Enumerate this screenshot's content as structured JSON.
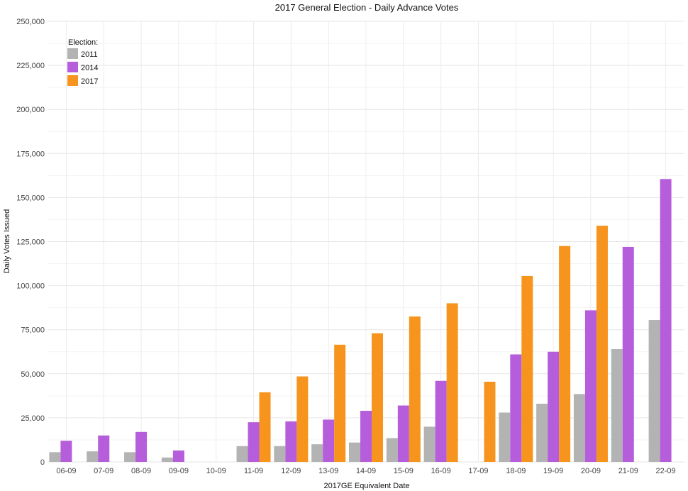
{
  "chart_data": {
    "type": "bar",
    "title": "2017 General Election - Daily Advance Votes",
    "xlabel": "2017GE Equivalent Date",
    "ylabel": "Daily Votes Issued",
    "categories": [
      "06-09",
      "07-09",
      "08-09",
      "09-09",
      "10-09",
      "11-09",
      "12-09",
      "13-09",
      "14-09",
      "15-09",
      "16-09",
      "17-09",
      "18-09",
      "19-09",
      "20-09",
      "21-09",
      "22-09"
    ],
    "series": [
      {
        "name": "2011",
        "color": "#b3b3b3",
        "values": [
          5500,
          6000,
          5500,
          2500,
          null,
          9000,
          9000,
          10000,
          11000,
          13500,
          20000,
          null,
          28000,
          33000,
          38500,
          64000,
          80500
        ]
      },
      {
        "name": "2014",
        "color": "#b65ddb",
        "values": [
          12000,
          15000,
          17000,
          6500,
          null,
          22500,
          23000,
          24000,
          29000,
          32000,
          46000,
          null,
          61000,
          62500,
          86000,
          122000,
          160500
        ]
      },
      {
        "name": "2017",
        "color": "#f7941d",
        "values": [
          null,
          null,
          null,
          null,
          null,
          39500,
          48500,
          66500,
          73000,
          82500,
          90000,
          45500,
          105500,
          122500,
          134000,
          null,
          null
        ]
      }
    ],
    "ylim": [
      0,
      250000
    ],
    "yticks": [
      0,
      25000,
      50000,
      75000,
      100000,
      125000,
      150000,
      175000,
      200000,
      225000,
      250000
    ],
    "ytick_labels": [
      "0",
      "25,000",
      "50,000",
      "75,000",
      "100,000",
      "125,000",
      "150,000",
      "175,000",
      "200,000",
      "225,000",
      "250,000"
    ],
    "grid": true,
    "legend": {
      "title": "Election:",
      "position": "top-left"
    }
  }
}
